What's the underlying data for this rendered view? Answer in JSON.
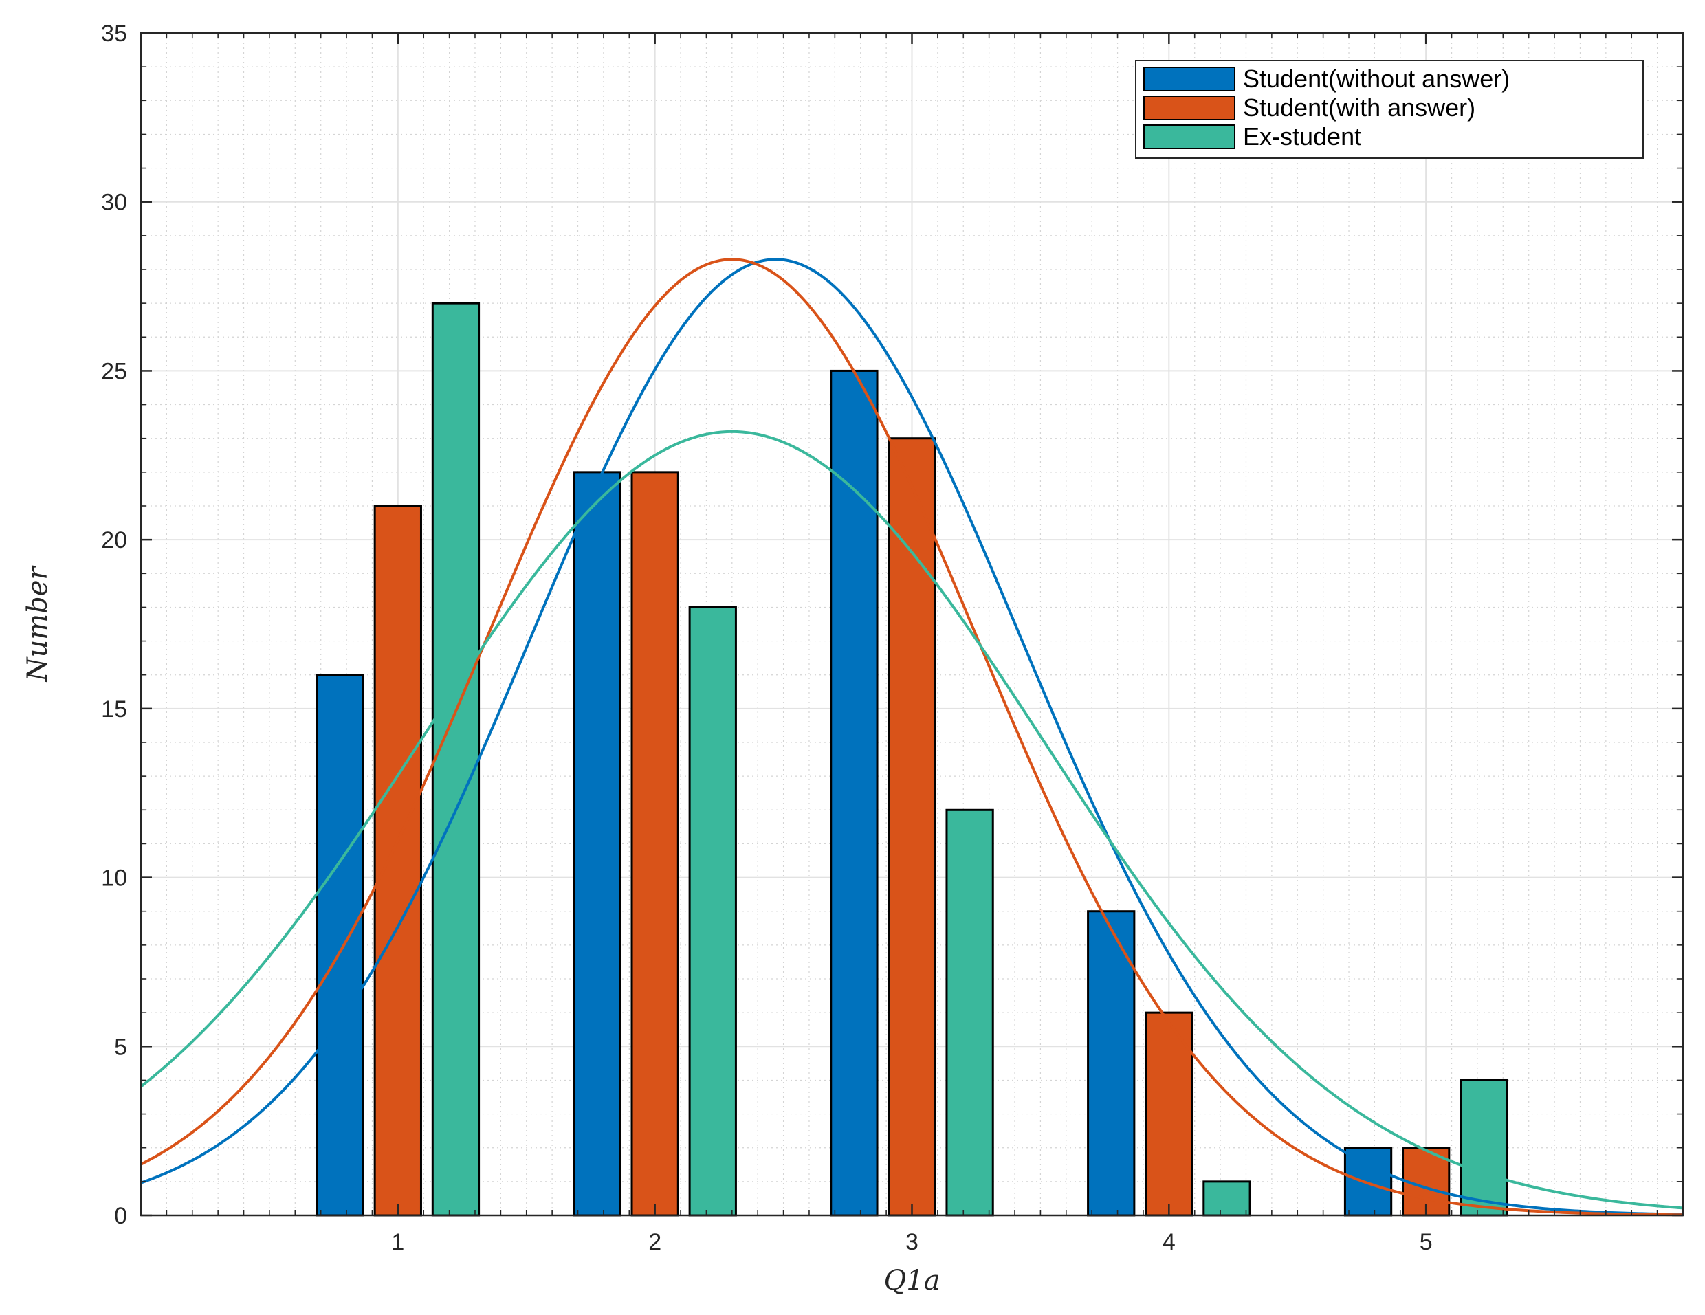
{
  "chart_data": {
    "type": "bar",
    "xlabel": "Q1a",
    "ylabel": "Number",
    "categories": [
      1,
      2,
      3,
      4,
      5
    ],
    "xlim": [
      0,
      6
    ],
    "ylim": [
      0,
      35
    ],
    "yticks": [
      0,
      5,
      10,
      15,
      20,
      25,
      30,
      35
    ],
    "xticks": [
      1,
      2,
      3,
      4,
      5
    ],
    "grid": true,
    "minor_grid": true,
    "legend_position": "top-right",
    "series": [
      {
        "name": "Student(without answer)",
        "color": "#0072BD",
        "values": [
          16,
          22,
          25,
          9,
          2
        ],
        "fit": {
          "type": "normal",
          "mean": 2.47,
          "std": 0.95,
          "peak": 28.3
        }
      },
      {
        "name": "Student(with answer)",
        "color": "#D95319",
        "values": [
          21,
          22,
          23,
          6,
          2
        ],
        "fit": {
          "type": "normal",
          "mean": 2.3,
          "std": 0.95,
          "peak": 28.3
        }
      },
      {
        "name": "Ex-student",
        "color": "#3AB89C",
        "values": [
          27,
          18,
          12,
          1,
          4
        ],
        "fit": {
          "type": "normal",
          "mean": 2.3,
          "std": 1.21,
          "peak": 23.2
        }
      }
    ]
  }
}
